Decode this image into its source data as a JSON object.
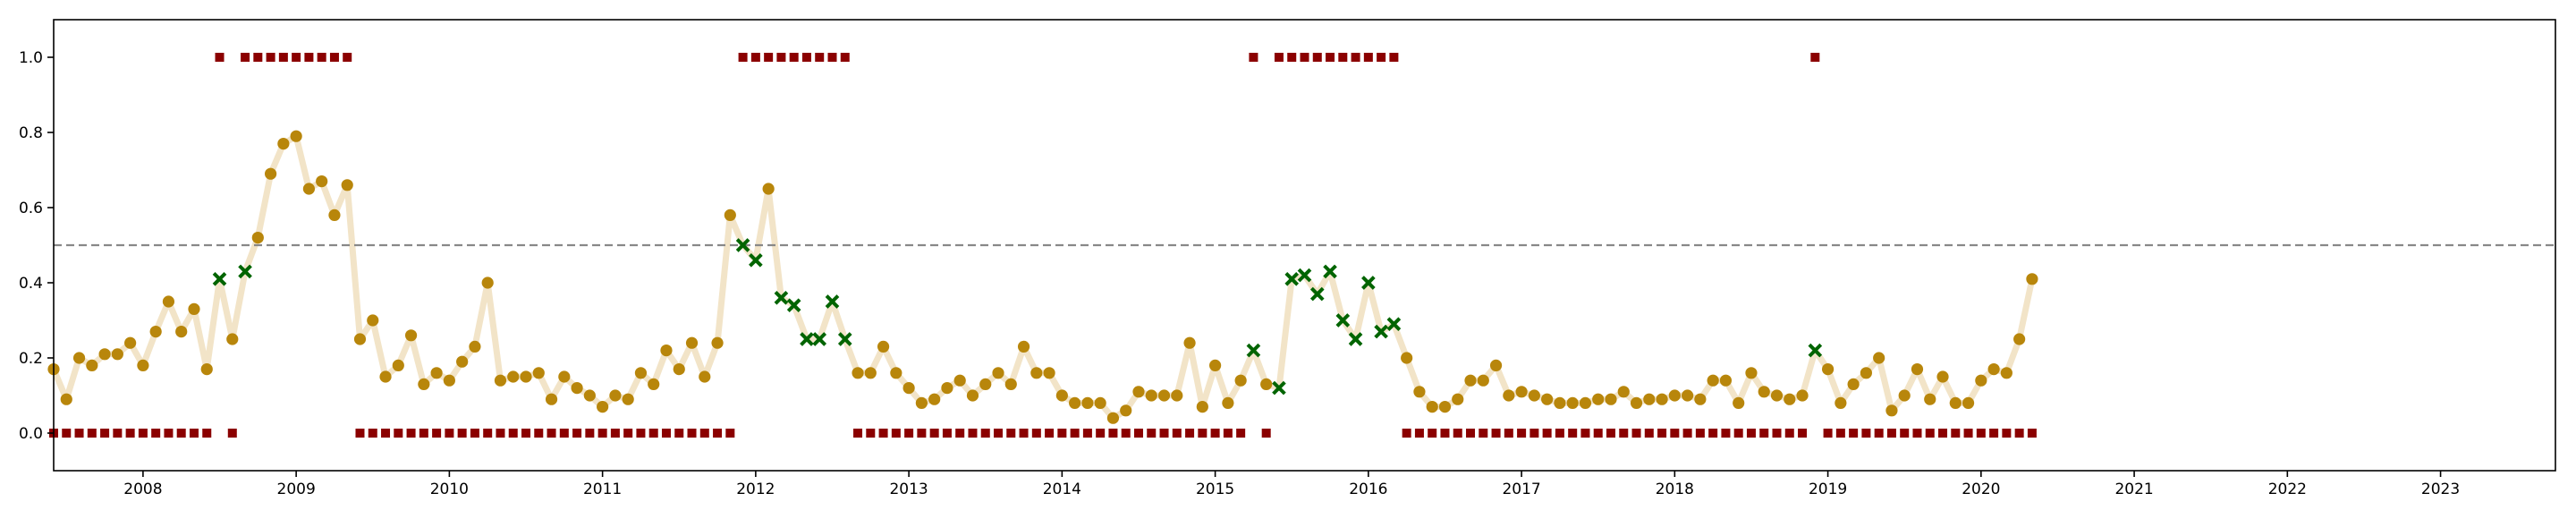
{
  "chart_data": {
    "type": "scatter",
    "title": "",
    "xlabel": "",
    "ylabel": "",
    "xlim": [
      "2007-06-01",
      "2023-10-01"
    ],
    "ylim": [
      -0.1,
      1.1
    ],
    "x_tick_labels": [
      "2008",
      "2009",
      "2010",
      "2011",
      "2012",
      "2013",
      "2014",
      "2015",
      "2016",
      "2017",
      "2018",
      "2019",
      "2020",
      "2021",
      "2022",
      "2023"
    ],
    "y_tick_labels": [
      "0.0",
      "0.2",
      "0.4",
      "0.6",
      "0.8",
      "1.0"
    ],
    "y_ticks": [
      0.0,
      0.2,
      0.4,
      0.6,
      0.8,
      1.0
    ],
    "threshold": 0.5,
    "grid": false,
    "colors": {
      "line": "#f2e4c8",
      "circle": "#b8860b",
      "cross": "#006400",
      "square": "#8b0000",
      "threshold": "#888888",
      "axis": "#000000"
    },
    "series": [
      {
        "marker": "circle",
        "x": [
          "2007-06",
          "2007-07",
          "2007-08",
          "2007-09",
          "2007-10",
          "2007-11",
          "2007-12",
          "2008-01",
          "2008-02",
          "2008-03",
          "2008-04",
          "2008-05",
          "2008-06",
          "2008-08",
          "2008-10",
          "2008-11",
          "2008-12",
          "2009-01",
          "2009-02",
          "2009-03",
          "2009-04",
          "2009-05",
          "2009-06",
          "2009-07",
          "2009-08",
          "2009-09",
          "2009-10",
          "2009-11",
          "2009-12",
          "2010-01",
          "2010-02",
          "2010-03",
          "2010-04",
          "2010-05",
          "2010-06",
          "2010-07",
          "2010-08",
          "2010-09",
          "2010-10",
          "2010-11",
          "2010-12",
          "2011-01",
          "2011-02",
          "2011-03",
          "2011-04",
          "2011-05",
          "2011-06",
          "2011-07",
          "2011-08",
          "2011-09",
          "2011-10",
          "2011-11",
          "2012-02",
          "2012-09",
          "2012-10",
          "2012-11",
          "2012-12",
          "2013-01",
          "2013-02",
          "2013-03",
          "2013-04",
          "2013-05",
          "2013-06",
          "2013-07",
          "2013-08",
          "2013-09",
          "2013-10",
          "2013-11",
          "2013-12",
          "2014-01",
          "2014-02",
          "2014-03",
          "2014-04",
          "2014-05",
          "2014-06",
          "2014-07",
          "2014-08",
          "2014-09",
          "2014-10",
          "2014-11",
          "2014-12",
          "2015-01",
          "2015-02",
          "2015-03",
          "2015-05",
          "2016-04",
          "2016-05",
          "2016-06",
          "2016-07",
          "2016-08",
          "2016-09",
          "2016-10",
          "2016-11",
          "2016-12",
          "2017-01",
          "2017-02",
          "2017-03",
          "2017-04",
          "2017-05",
          "2017-06",
          "2017-07",
          "2017-08",
          "2017-09",
          "2017-10",
          "2017-11",
          "2017-12",
          "2018-01",
          "2018-02",
          "2018-03",
          "2018-04",
          "2018-05",
          "2018-06",
          "2018-07",
          "2018-08",
          "2018-09",
          "2018-10",
          "2018-11",
          "2019-01",
          "2019-02",
          "2019-03",
          "2019-04",
          "2019-05",
          "2019-06",
          "2019-07",
          "2019-08",
          "2019-09",
          "2019-10",
          "2019-11",
          "2019-12",
          "2020-01",
          "2020-02",
          "2020-03",
          "2020-04",
          "2020-05"
        ],
        "y": [
          0.17,
          0.09,
          0.2,
          0.18,
          0.21,
          0.21,
          0.24,
          0.18,
          0.27,
          0.35,
          0.27,
          0.33,
          0.17,
          0.25,
          0.52,
          0.69,
          0.77,
          0.79,
          0.65,
          0.67,
          0.58,
          0.66,
          0.25,
          0.3,
          0.15,
          0.18,
          0.26,
          0.13,
          0.16,
          0.14,
          0.19,
          0.23,
          0.4,
          0.14,
          0.15,
          0.15,
          0.16,
          0.09,
          0.15,
          0.12,
          0.1,
          0.07,
          0.1,
          0.09,
          0.16,
          0.13,
          0.22,
          0.17,
          0.24,
          0.15,
          0.24,
          0.58,
          0.65,
          0.16,
          0.16,
          0.23,
          0.16,
          0.12,
          0.08,
          0.09,
          0.12,
          0.14,
          0.1,
          0.13,
          0.16,
          0.13,
          0.23,
          0.16,
          0.16,
          0.1,
          0.08,
          0.08,
          0.08,
          0.04,
          0.06,
          0.11,
          0.1,
          0.1,
          0.1,
          0.24,
          0.07,
          0.18,
          0.08,
          0.14,
          0.13,
          0.2,
          0.11,
          0.07,
          0.07,
          0.09,
          0.14,
          0.14,
          0.18,
          0.1,
          0.11,
          0.1,
          0.09,
          0.08,
          0.08,
          0.08,
          0.09,
          0.09,
          0.11,
          0.08,
          0.09,
          0.09,
          0.1,
          0.1,
          0.09,
          0.14,
          0.14,
          0.08,
          0.16,
          0.11,
          0.1,
          0.09,
          0.1,
          0.17,
          0.08,
          0.13,
          0.16,
          0.2,
          0.06,
          0.1,
          0.17,
          0.09,
          0.15,
          0.08,
          0.08,
          0.14,
          0.17,
          0.16,
          0.25,
          0.41
        ]
      },
      {
        "marker": "x",
        "x": [
          "2008-07",
          "2008-09",
          "2011-12",
          "2012-01",
          "2012-03",
          "2012-04",
          "2012-05",
          "2012-06",
          "2012-07",
          "2012-08",
          "2015-04",
          "2015-06",
          "2015-07",
          "2015-08",
          "2015-09",
          "2015-10",
          "2015-11",
          "2015-12",
          "2016-01",
          "2016-02",
          "2016-03",
          "2018-12"
        ],
        "y": [
          0.41,
          0.43,
          0.5,
          0.46,
          0.36,
          0.34,
          0.25,
          0.25,
          0.35,
          0.25,
          0.22,
          0.12,
          0.41,
          0.42,
          0.37,
          0.43,
          0.3,
          0.25,
          0.4,
          0.27,
          0.29,
          0.22
        ]
      },
      {
        "marker": "square",
        "x": [
          "2007-06",
          "2007-07",
          "2007-08",
          "2007-09",
          "2007-10",
          "2007-11",
          "2007-12",
          "2008-01",
          "2008-02",
          "2008-03",
          "2008-04",
          "2008-05",
          "2008-06",
          "2008-07",
          "2008-08",
          "2008-09",
          "2008-10",
          "2008-11",
          "2008-12",
          "2009-01",
          "2009-02",
          "2009-03",
          "2009-04",
          "2009-05",
          "2009-06",
          "2009-07",
          "2009-08",
          "2009-09",
          "2009-10",
          "2009-11",
          "2009-12",
          "2010-01",
          "2010-02",
          "2010-03",
          "2010-04",
          "2010-05",
          "2010-06",
          "2010-07",
          "2010-08",
          "2010-09",
          "2010-10",
          "2010-11",
          "2010-12",
          "2011-01",
          "2011-02",
          "2011-03",
          "2011-04",
          "2011-05",
          "2011-06",
          "2011-07",
          "2011-08",
          "2011-09",
          "2011-10",
          "2011-11",
          "2011-12",
          "2012-01",
          "2012-02",
          "2012-03",
          "2012-04",
          "2012-05",
          "2012-06",
          "2012-07",
          "2012-08",
          "2012-09",
          "2012-10",
          "2012-11",
          "2012-12",
          "2013-01",
          "2013-02",
          "2013-03",
          "2013-04",
          "2013-05",
          "2013-06",
          "2013-07",
          "2013-08",
          "2013-09",
          "2013-10",
          "2013-11",
          "2013-12",
          "2014-01",
          "2014-02",
          "2014-03",
          "2014-04",
          "2014-05",
          "2014-06",
          "2014-07",
          "2014-08",
          "2014-09",
          "2014-10",
          "2014-11",
          "2014-12",
          "2015-01",
          "2015-02",
          "2015-03",
          "2015-04",
          "2015-05",
          "2015-06",
          "2015-07",
          "2015-08",
          "2015-09",
          "2015-10",
          "2015-11",
          "2015-12",
          "2016-01",
          "2016-02",
          "2016-03",
          "2016-04",
          "2016-05",
          "2016-06",
          "2016-07",
          "2016-08",
          "2016-09",
          "2016-10",
          "2016-11",
          "2016-12",
          "2017-01",
          "2017-02",
          "2017-03",
          "2017-04",
          "2017-05",
          "2017-06",
          "2017-07",
          "2017-08",
          "2017-09",
          "2017-10",
          "2017-11",
          "2017-12",
          "2018-01",
          "2018-02",
          "2018-03",
          "2018-04",
          "2018-05",
          "2018-06",
          "2018-07",
          "2018-08",
          "2018-09",
          "2018-10",
          "2018-11",
          "2018-12",
          "2019-01",
          "2019-02",
          "2019-03",
          "2019-04",
          "2019-05",
          "2019-06",
          "2019-07",
          "2019-08",
          "2019-09",
          "2019-10",
          "2019-11",
          "2019-12",
          "2020-01",
          "2020-02",
          "2020-03",
          "2020-04",
          "2020-05"
        ],
        "y": [
          0,
          0,
          0,
          0,
          0,
          0,
          0,
          0,
          0,
          0,
          0,
          0,
          0,
          1,
          0,
          1,
          1,
          1,
          1,
          1,
          1,
          1,
          1,
          1,
          0,
          0,
          0,
          0,
          0,
          0,
          0,
          0,
          0,
          0,
          0,
          0,
          0,
          0,
          0,
          0,
          0,
          0,
          0,
          0,
          0,
          0,
          0,
          0,
          0,
          0,
          0,
          0,
          0,
          0,
          1,
          1,
          1,
          1,
          1,
          1,
          1,
          1,
          1,
          0,
          0,
          0,
          0,
          0,
          0,
          0,
          0,
          0,
          0,
          0,
          0,
          0,
          0,
          0,
          0,
          0,
          0,
          0,
          0,
          0,
          0,
          0,
          0,
          0,
          0,
          0,
          0,
          0,
          0,
          0,
          1,
          0,
          1,
          1,
          1,
          1,
          1,
          1,
          1,
          1,
          1,
          1,
          0,
          0,
          0,
          0,
          0,
          0,
          0,
          0,
          0,
          0,
          0,
          0,
          0,
          0,
          0,
          0,
          0,
          0,
          0,
          0,
          0,
          0,
          0,
          0,
          0,
          0,
          0,
          0,
          0,
          0,
          0,
          0,
          1,
          0,
          0,
          0,
          0,
          0,
          0,
          0,
          0,
          0,
          0,
          0,
          0,
          0,
          0,
          0,
          0,
          0
        ]
      }
    ]
  }
}
